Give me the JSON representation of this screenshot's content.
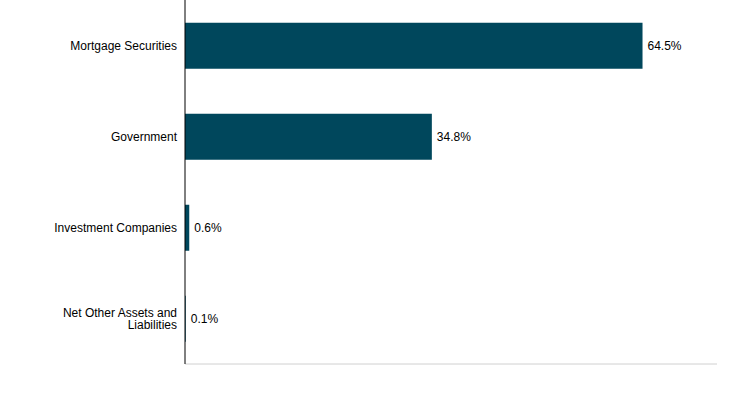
{
  "chart_data": {
    "type": "bar",
    "orientation": "horizontal",
    "categories": [
      "Mortgage Securities",
      "Government",
      "Investment Companies",
      "Net Other Assets and Liabilities"
    ],
    "values": [
      64.5,
      34.8,
      0.6,
      0.1
    ],
    "value_labels": [
      "64.5%",
      "34.8%",
      "0.6%",
      "0.1%"
    ],
    "data_labels": true,
    "color": "#00475c",
    "xlim": [
      0,
      75
    ],
    "xticks": [],
    "tick_labels": "y",
    "grid": false
  }
}
